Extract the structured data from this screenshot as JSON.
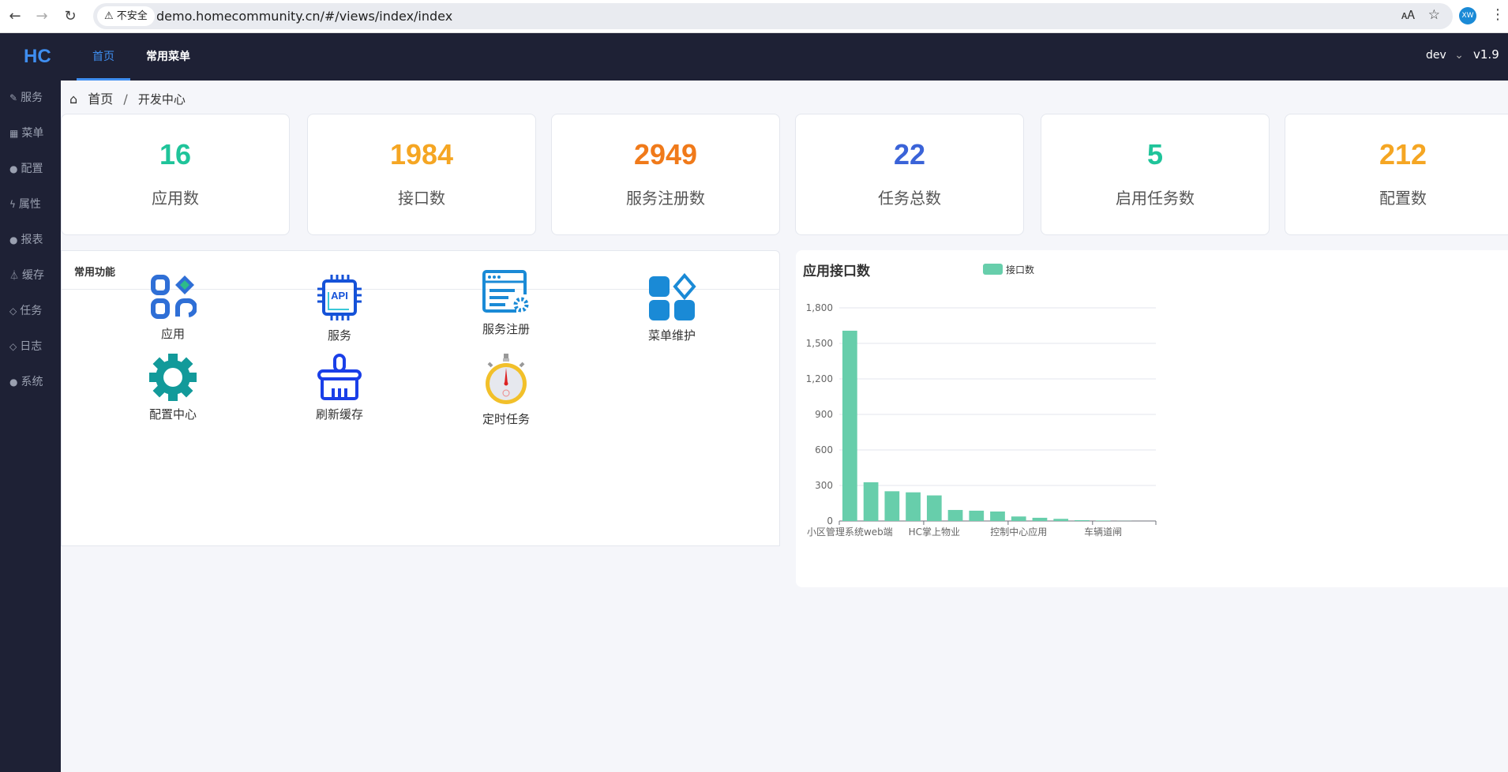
{
  "browser": {
    "security_label": "不安全",
    "url": "demo.homecommunity.cn/#/views/index/index",
    "profile": "XW"
  },
  "header": {
    "logo": "HC",
    "tabs": [
      {
        "label": "首页",
        "active": true
      },
      {
        "label": "常用菜单",
        "active": false
      }
    ],
    "env": "dev",
    "version": "v1.9"
  },
  "sidebar": {
    "items": [
      {
        "label": "服务",
        "icon": "edit-icon"
      },
      {
        "label": "菜单",
        "icon": "grid-icon"
      },
      {
        "label": "配置",
        "icon": "globe-icon"
      },
      {
        "label": "属性",
        "icon": "bolt-icon"
      },
      {
        "label": "报表",
        "icon": "globe-icon"
      },
      {
        "label": "缓存",
        "icon": "flask-icon"
      },
      {
        "label": "任务",
        "icon": "diamond-icon"
      },
      {
        "label": "日志",
        "icon": "diamond-icon"
      },
      {
        "label": "系统",
        "icon": "globe-icon"
      }
    ]
  },
  "breadcrumb": {
    "home": "首页",
    "separator": "/",
    "current": "开发中心"
  },
  "stats": [
    {
      "value": "16",
      "label": "应用数",
      "color": "#1fc49a"
    },
    {
      "value": "1984",
      "label": "接口数",
      "color": "#f5a623"
    },
    {
      "value": "2949",
      "label": "服务注册数",
      "color": "#f07a1a"
    },
    {
      "value": "22",
      "label": "任务总数",
      "color": "#3a63d8"
    },
    {
      "value": "5",
      "label": "启用任务数",
      "color": "#1fc49a"
    },
    {
      "value": "212",
      "label": "配置数",
      "color": "#f5a623"
    }
  ],
  "functions": {
    "title": "常用功能",
    "items": [
      {
        "label": "应用",
        "icon": "apps-icon"
      },
      {
        "label": "服务",
        "icon": "api-chip-icon"
      },
      {
        "label": "服务注册",
        "icon": "service-register-icon"
      },
      {
        "label": "菜单维护",
        "icon": "menu-blocks-icon"
      },
      {
        "label": "配置中心",
        "icon": "gear-icon"
      },
      {
        "label": "刷新缓存",
        "icon": "brush-icon"
      },
      {
        "label": "定时任务",
        "icon": "stopwatch-icon"
      }
    ]
  },
  "chart_data": {
    "type": "bar",
    "title": "应用接口数",
    "legend": [
      "接口数"
    ],
    "legend_position": "top-center",
    "grid": true,
    "color": "#67ceab",
    "categories": [
      "小区管理系统web端",
      "",
      "",
      "",
      "HC掌上物业",
      "",
      "",
      "",
      "控制中心应用",
      "",
      "",
      "",
      "车辆道闸",
      "",
      ""
    ],
    "series": [
      {
        "name": "接口数",
        "values": [
          1607,
          327,
          251,
          242,
          216,
          93,
          87,
          80,
          38,
          27,
          18,
          7,
          4,
          1,
          0
        ]
      }
    ],
    "ylim": [
      0,
      1800
    ],
    "yticks": [
      "0",
      "300",
      "600",
      "900",
      "1,200",
      "1,500",
      "1,800"
    ]
  }
}
